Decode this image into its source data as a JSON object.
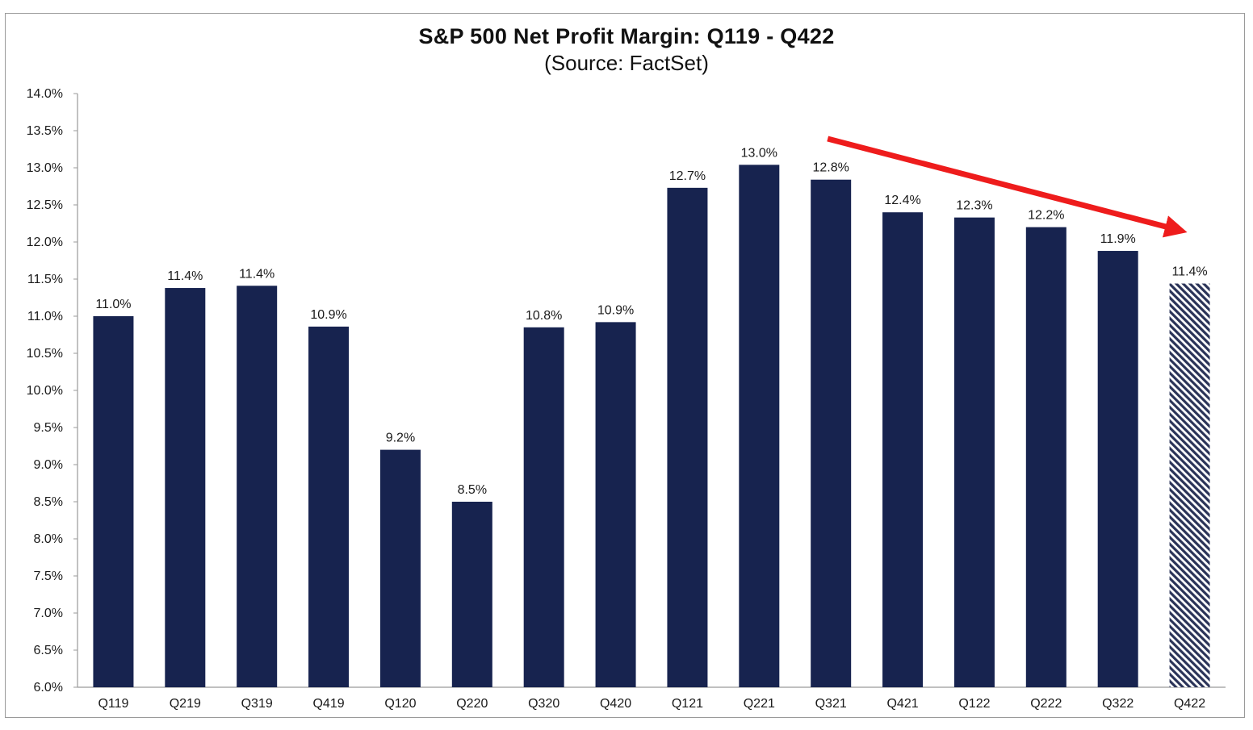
{
  "chart_data": {
    "type": "bar",
    "title": "S&P 500 Net Profit Margin: Q119 - Q422",
    "subtitle": "(Source: FactSet)",
    "xlabel": "",
    "ylabel": "",
    "ylim": [
      6.0,
      14.0
    ],
    "ytick_step": 0.5,
    "ytick_format": "percent-1dp",
    "grid": false,
    "legend": "none",
    "categories": [
      "Q119",
      "Q219",
      "Q319",
      "Q419",
      "Q120",
      "Q220",
      "Q320",
      "Q420",
      "Q121",
      "Q221",
      "Q321",
      "Q421",
      "Q122",
      "Q222",
      "Q322",
      "Q422"
    ],
    "values": [
      11.0,
      11.4,
      11.4,
      10.9,
      9.2,
      8.5,
      10.8,
      10.9,
      12.7,
      13.0,
      12.8,
      12.4,
      12.3,
      12.2,
      11.9,
      11.4
    ],
    "plotted_values": [
      11.0,
      11.38,
      11.41,
      10.86,
      9.2,
      8.5,
      10.85,
      10.92,
      12.73,
      13.04,
      12.84,
      12.4,
      12.33,
      12.2,
      11.88,
      11.44
    ],
    "data_labels": [
      "11.0%",
      "11.4%",
      "11.4%",
      "10.9%",
      "9.2%",
      "8.5%",
      "10.8%",
      "10.9%",
      "12.7%",
      "13.0%",
      "12.8%",
      "12.4%",
      "12.3%",
      "12.2%",
      "11.9%",
      "11.4%"
    ],
    "estimate_categories": [
      "Q422"
    ],
    "annotations": [
      {
        "type": "arrow",
        "description": "downward trend arrow",
        "from_category": "Q321",
        "to_category": "Q422",
        "color": "#ee1c1c"
      }
    ]
  },
  "colors": {
    "bar": "#17234f",
    "estimate_hatch": "#2a3358",
    "arrow": "#ee1c1c",
    "axis": "#9a9a9a",
    "text": "#1a1a1a"
  }
}
